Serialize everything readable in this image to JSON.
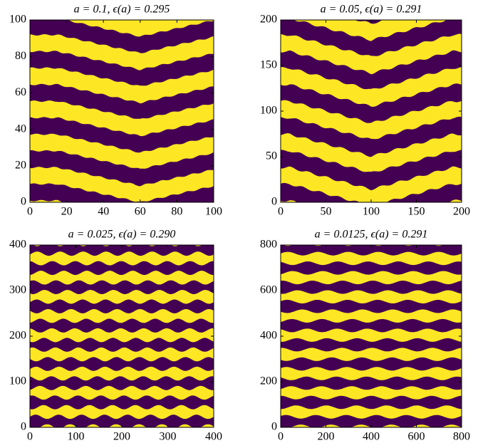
{
  "chart_data": [
    {
      "type": "heatmap",
      "title": "a = 0.1,  ϵ(a) = 0.295",
      "xlim": [
        0,
        100
      ],
      "ylim": [
        0,
        100
      ],
      "xticks": [
        0,
        20,
        40,
        60,
        80,
        100
      ],
      "yticks": [
        0,
        20,
        40,
        60,
        80,
        100
      ],
      "colors": [
        "#440154",
        "#fde725"
      ]
    },
    {
      "type": "heatmap",
      "title": "a = 0.05,  ϵ(a) = 0.291",
      "xlim": [
        0,
        200
      ],
      "ylim": [
        0,
        200
      ],
      "xticks": [
        0,
        50,
        100,
        150,
        200
      ],
      "yticks": [
        0,
        50,
        100,
        150,
        200
      ],
      "colors": [
        "#440154",
        "#fde725"
      ]
    },
    {
      "type": "heatmap",
      "title": "a = 0.025,  ϵ(a) = 0.290",
      "xlim": [
        0,
        400
      ],
      "ylim": [
        0,
        400
      ],
      "xticks": [
        0,
        100,
        200,
        300,
        400
      ],
      "yticks": [
        0,
        100,
        200,
        300,
        400
      ],
      "colors": [
        "#440154",
        "#fde725"
      ]
    },
    {
      "type": "heatmap",
      "title": "a = 0.0125,  ϵ(a) = 0.291",
      "xlim": [
        0,
        800
      ],
      "ylim": [
        0,
        800
      ],
      "xticks": [
        0,
        200,
        400,
        600,
        800
      ],
      "yticks": [
        0,
        200,
        400,
        600,
        800
      ],
      "colors": [
        "#440154",
        "#fde725"
      ]
    }
  ]
}
